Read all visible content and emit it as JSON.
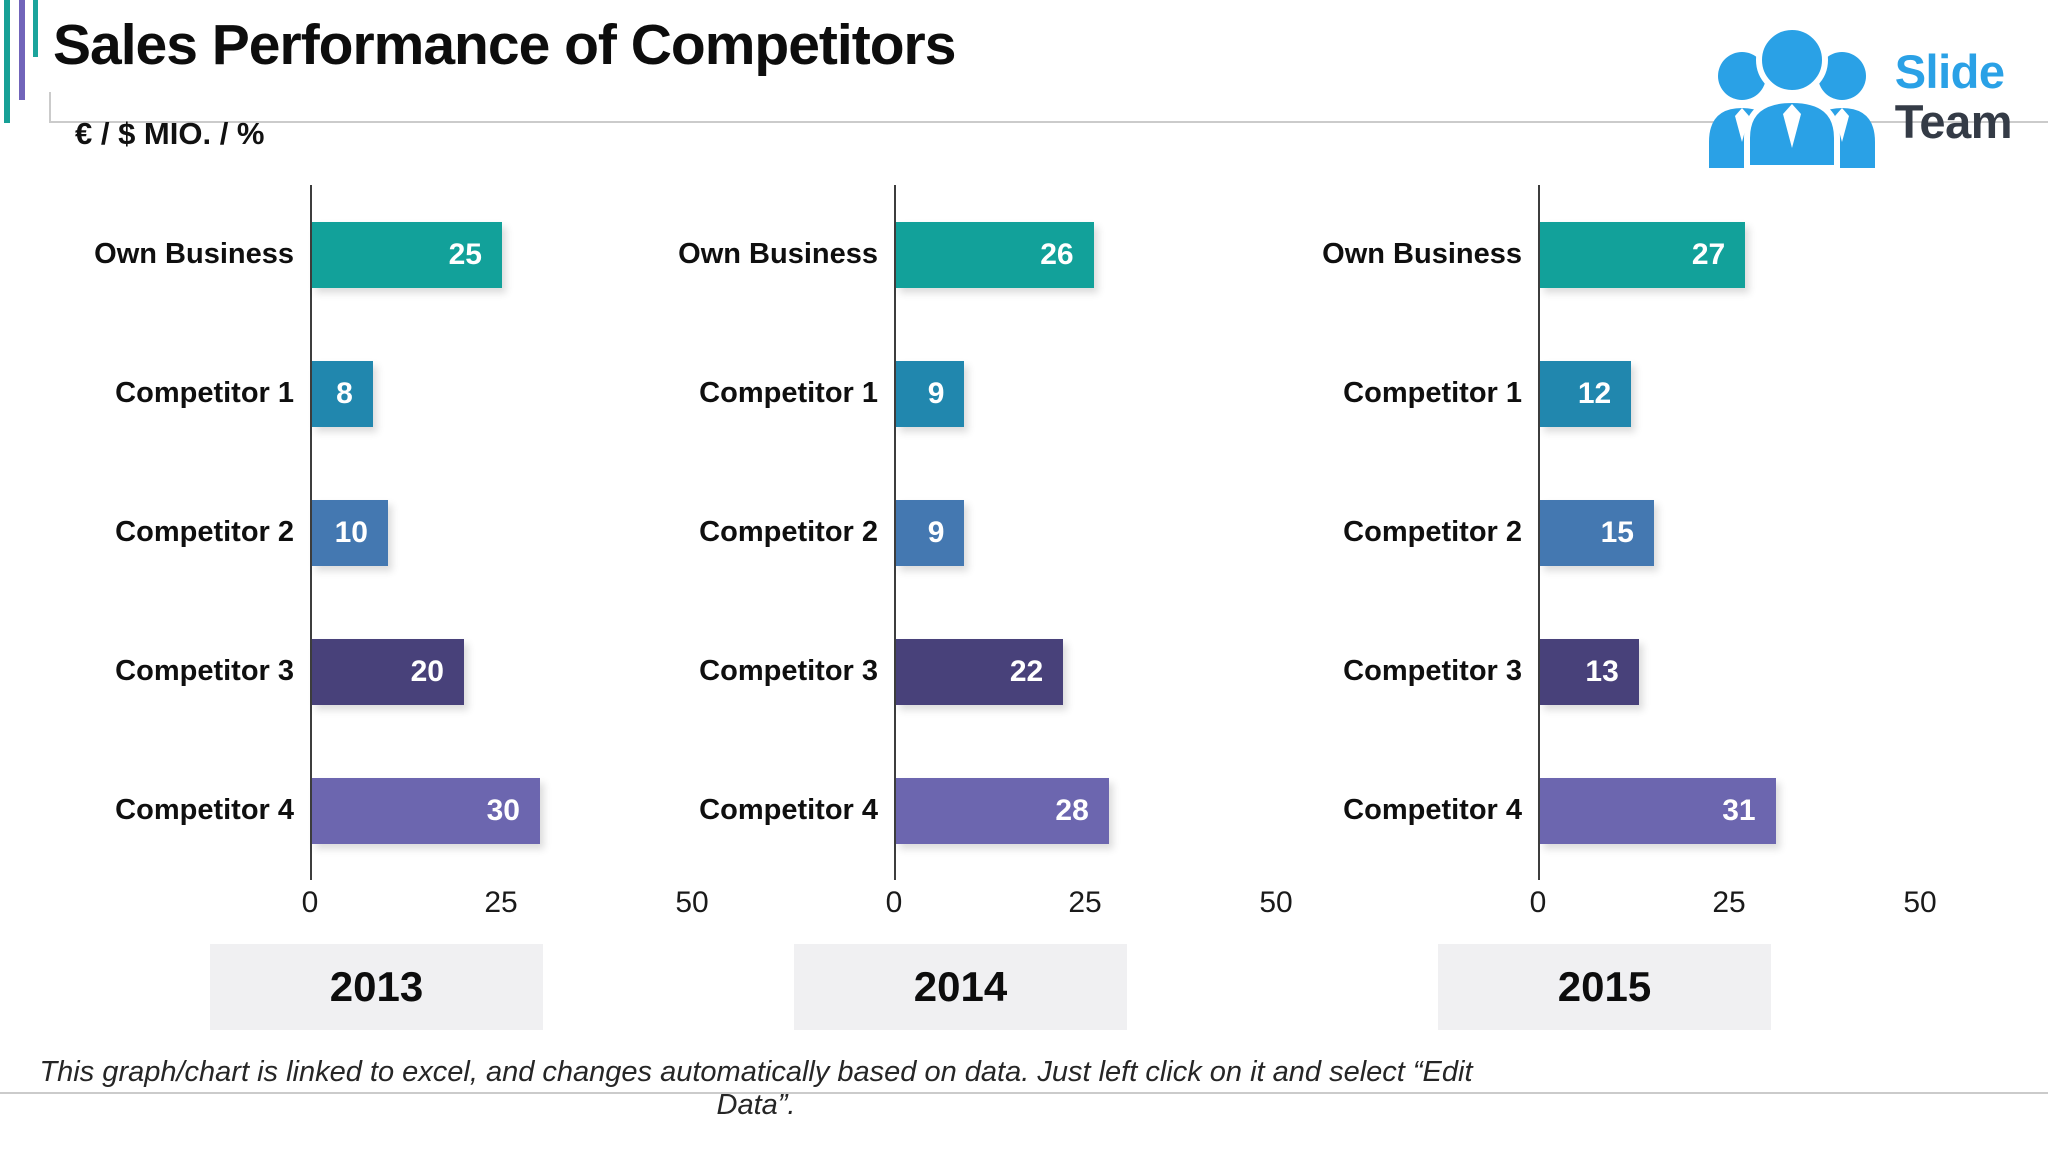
{
  "slide": {
    "title": "Sales Performance of Competitors",
    "subtitle": "€ / $ MIO. / %",
    "footnote": "This graph/chart is linked to excel, and changes automatically based on data. Just left click on it and select “Edit Data”.",
    "logo": {
      "line1": "Slide",
      "line2": "Team",
      "icon": "people-group-icon"
    }
  },
  "colors": {
    "bars": [
      "#12A19A",
      "#2187AE",
      "#4478B1",
      "#48417A",
      "#6C66AF"
    ],
    "accent_teal": "#17A096",
    "accent_purple": "#7164BA",
    "logo_blue": "#2AA1E6",
    "logo_dark": "#343B46",
    "year_box_bg": "#F0F0F2",
    "axis_line": "#3D3D3D",
    "rule_gray": "#CBCBCB"
  },
  "chart_data": [
    {
      "type": "bar",
      "orientation": "horizontal",
      "year": "2013",
      "categories": [
        "Own Business",
        "Competitor 1",
        "Competitor 2",
        "Competitor 3",
        "Competitor 4"
      ],
      "values": [
        25,
        8,
        10,
        20,
        30
      ],
      "xticks": [
        0,
        25,
        50
      ],
      "xlim": [
        0,
        50
      ],
      "grid": false,
      "legend": false
    },
    {
      "type": "bar",
      "orientation": "horizontal",
      "year": "2014",
      "categories": [
        "Own Business",
        "Competitor 1",
        "Competitor 2",
        "Competitor 3",
        "Competitor 4"
      ],
      "values": [
        26,
        9,
        9,
        22,
        28
      ],
      "xticks": [
        0,
        25,
        50
      ],
      "xlim": [
        0,
        50
      ],
      "grid": false,
      "legend": false
    },
    {
      "type": "bar",
      "orientation": "horizontal",
      "year": "2015",
      "categories": [
        "Own Business",
        "Competitor 1",
        "Competitor 2",
        "Competitor 3",
        "Competitor 4"
      ],
      "values": [
        27,
        12,
        15,
        13,
        31
      ],
      "xticks": [
        0,
        25,
        50
      ],
      "xlim": [
        0,
        50
      ],
      "grid": false,
      "legend": false
    }
  ]
}
